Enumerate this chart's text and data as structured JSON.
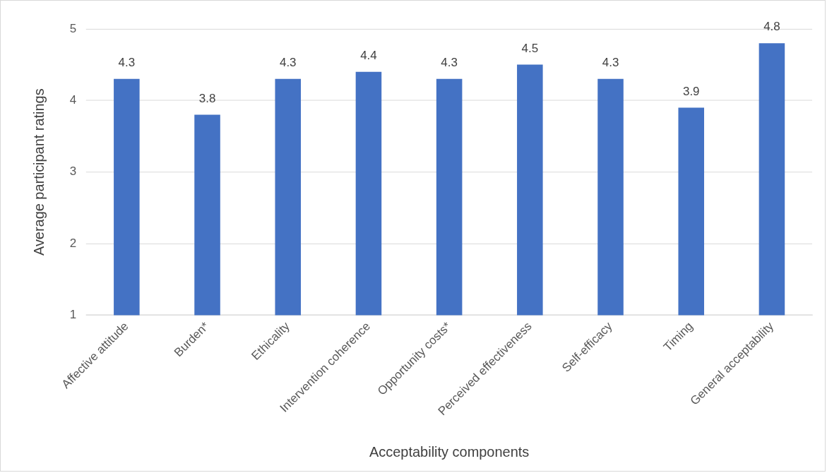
{
  "chart_data": {
    "type": "bar",
    "xlabel": "Acceptability components",
    "ylabel": "Average participant ratings",
    "categories": [
      "Affective attitude",
      "Burden*",
      "Ethicality",
      "Intervention coherence",
      "Opportunity costs*",
      "Perceived effectiveness",
      "Self-efficacy",
      "Timing",
      "General acceptability"
    ],
    "values": [
      4.3,
      3.8,
      4.3,
      4.4,
      4.3,
      4.5,
      4.3,
      3.9,
      4.8
    ],
    "color": "#4472c4",
    "ylim": [
      1,
      5
    ],
    "yticks": [
      1,
      2,
      3,
      4,
      5
    ],
    "grid": "y",
    "data_labels": true
  }
}
